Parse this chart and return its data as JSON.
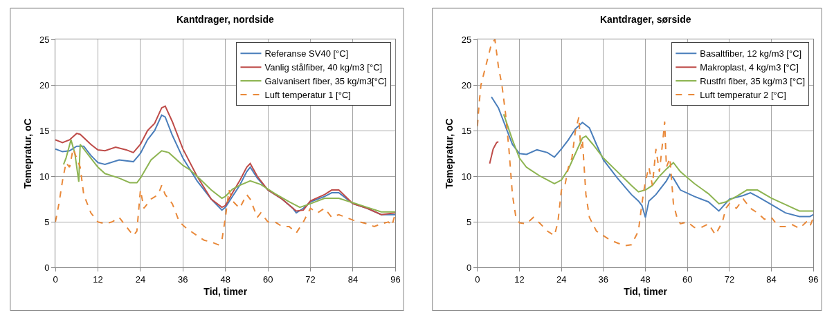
{
  "chart_data": [
    {
      "type": "line",
      "title": "Kantdrager, nordside",
      "xlabel": "Tid, timer",
      "ylabel": "Temepratur, oC",
      "xlim": [
        0,
        96
      ],
      "xticks": [
        0,
        12,
        24,
        36,
        48,
        60,
        72,
        84,
        96
      ],
      "ylim": [
        0,
        25
      ],
      "yticks": [
        0,
        5,
        10,
        15,
        20,
        25
      ],
      "grid": true,
      "legend": "top right",
      "marker": "none",
      "series": [
        {
          "name": "Referanse SV40 [°C]",
          "color": "#4a7ebb",
          "x": [
            0,
            2,
            4,
            6,
            8,
            10,
            12,
            14,
            18,
            22,
            24,
            26,
            28,
            30,
            31,
            33,
            36,
            40,
            44,
            47,
            48,
            50,
            52,
            54,
            55,
            57,
            60,
            64,
            67,
            68,
            70,
            72,
            76,
            78,
            80,
            84,
            88,
            92,
            96
          ],
          "values": [
            13,
            12.7,
            12.8,
            13.3,
            13.3,
            12.3,
            11.5,
            11.3,
            11.8,
            11.6,
            12.5,
            14,
            15,
            16.7,
            16.5,
            14.5,
            12,
            9.5,
            7.5,
            6.3,
            6.6,
            7.8,
            9,
            10.5,
            11,
            9.8,
            8.5,
            7.5,
            6.5,
            6,
            6.5,
            7.2,
            7.8,
            8.2,
            8.2,
            7,
            6.5,
            5.8,
            5.8
          ]
        },
        {
          "name": "Vanlig stålfiber, 40 kg/m3 [°C]",
          "color": "#be4b48",
          "x": [
            0,
            2,
            4,
            6,
            7,
            10,
            12,
            14,
            17,
            20,
            22,
            24,
            26,
            28,
            30,
            31,
            33,
            36,
            40,
            44,
            47,
            48,
            50,
            52,
            54,
            55,
            57,
            60,
            64,
            68,
            70,
            72,
            76,
            78,
            80,
            84,
            88,
            92,
            96
          ],
          "values": [
            14,
            13.7,
            14,
            14.7,
            14.6,
            13.5,
            12.9,
            12.8,
            13.2,
            12.9,
            12.6,
            13.5,
            15,
            15.8,
            17.5,
            17.7,
            16,
            13,
            10,
            7.5,
            6.6,
            6.8,
            8.2,
            9.5,
            11,
            11.4,
            10,
            8.5,
            7.5,
            6.2,
            6.3,
            7.3,
            8,
            8.5,
            8.5,
            7,
            6.5,
            5.8,
            6
          ]
        },
        {
          "name": "Galvanisert fiber, 35 kg/m3[°C]",
          "color": "#8db451",
          "x": [
            2.3,
            3,
            4.4,
            5.5,
            6.6,
            7,
            10,
            12,
            14,
            18,
            21,
            23,
            24,
            27,
            30,
            32,
            36,
            38,
            40,
            44,
            47,
            48,
            50,
            52,
            55,
            58,
            62,
            66,
            69,
            72,
            76,
            80,
            84,
            88,
            92,
            96
          ],
          "values": [
            11.3,
            12,
            14,
            12.5,
            9.4,
            13.5,
            12,
            11,
            10.3,
            9.8,
            9.3,
            9.3,
            9.8,
            11.8,
            12.8,
            12.6,
            11.2,
            10.7,
            10,
            8.5,
            7.6,
            7.8,
            8.6,
            9,
            9.5,
            9.1,
            8.1,
            7.2,
            6.6,
            7,
            7.6,
            7.6,
            7.1,
            6.6,
            6.1,
            6.1
          ]
        },
        {
          "name": "Luft temperatur 1 [°C]",
          "color": "#e9893a",
          "line_style": "dashed",
          "x": [
            0,
            1,
            2,
            3,
            4,
            5,
            6,
            7,
            8,
            10,
            12,
            14,
            16,
            18,
            20,
            22,
            23,
            24,
            25,
            27,
            29,
            30,
            31,
            33,
            35,
            37,
            40,
            42,
            44,
            46,
            47,
            48,
            49,
            50,
            52,
            54,
            55,
            57,
            58,
            60,
            62,
            64,
            66,
            68,
            70,
            72,
            74,
            76,
            78,
            80,
            82,
            84,
            86,
            88,
            90,
            92,
            94,
            95,
            96
          ],
          "values": [
            5,
            7,
            9.5,
            11.5,
            11,
            13,
            12,
            11,
            8,
            6,
            5,
            4.8,
            5,
            5.5,
            4.5,
            3.5,
            4,
            8.5,
            6.5,
            7.5,
            8,
            9,
            8,
            7,
            5,
            4.3,
            3.5,
            3,
            2.8,
            2.5,
            3,
            5.5,
            8.5,
            7.3,
            6.5,
            8,
            7.5,
            5.5,
            6,
            5,
            5,
            4.5,
            4.5,
            3.8,
            5,
            6.5,
            6,
            6.5,
            5.5,
            5.8,
            5.5,
            5.2,
            5,
            4.8,
            4.5,
            4.8,
            5,
            4.6,
            6
          ]
        }
      ]
    },
    {
      "type": "line",
      "title": "Kantdrager, sørside",
      "xlabel": "Tid, timer",
      "ylabel": "Temepratur, oC",
      "xlim": [
        0,
        96
      ],
      "xticks": [
        0,
        12,
        24,
        36,
        48,
        60,
        72,
        84,
        96
      ],
      "ylim": [
        0,
        25
      ],
      "yticks": [
        0,
        5,
        10,
        15,
        20,
        25
      ],
      "grid": true,
      "legend": "top right",
      "marker": "none",
      "series": [
        {
          "name": "Basaltfiber, 12 kg/m3 [°C]",
          "color": "#4a7ebb",
          "x": [
            4,
            6,
            8,
            10,
            12,
            14,
            17,
            20,
            22,
            24,
            26,
            28,
            30,
            32,
            34,
            36,
            40,
            44,
            46,
            47,
            48,
            49,
            51,
            54,
            55,
            56,
            58,
            62,
            66,
            69,
            72,
            76,
            78,
            80,
            84,
            88,
            92,
            95,
            96
          ],
          "values": [
            18.7,
            17.5,
            15.5,
            13.5,
            12.5,
            12.4,
            12.9,
            12.6,
            12.1,
            13,
            14,
            15.2,
            15.9,
            15.3,
            13.5,
            11.8,
            9.8,
            8,
            7.3,
            6.8,
            5.5,
            7.3,
            8,
            9.5,
            10.2,
            9.8,
            8.5,
            7.8,
            7.2,
            6.2,
            7.5,
            7.9,
            8.2,
            7.8,
            6.9,
            6,
            5.6,
            5.6,
            5.8
          ]
        },
        {
          "name": "Makroplast, 4 kg/m3 [°C]",
          "color": "#be4b48",
          "x": [
            3.5,
            4.5,
            5.5,
            6
          ],
          "values": [
            11.4,
            13,
            13.7,
            13.8
          ]
        },
        {
          "name": "Rustfri fiber, 35 kg/m3 [°C]",
          "color": "#8db451",
          "x": [
            7.5,
            10,
            12,
            14,
            18,
            22,
            24,
            26,
            28,
            30,
            31,
            33,
            36,
            40,
            44,
            46,
            48,
            50,
            52,
            54,
            56,
            58,
            62,
            66,
            69,
            71,
            74,
            77,
            80,
            84,
            88,
            92,
            96
          ],
          "values": [
            16.8,
            14,
            12,
            11,
            10,
            9.2,
            9.6,
            10.8,
            12.5,
            14.2,
            14.4,
            13.5,
            12,
            10.5,
            9,
            8.3,
            8.5,
            9,
            10,
            10.8,
            11.5,
            10.5,
            9.2,
            8.1,
            7,
            7.2,
            7.8,
            8.5,
            8.5,
            7.6,
            6.9,
            6.2,
            6.2
          ]
        },
        {
          "name": "Luft temperatur 2 [°C]",
          "color": "#e9893a",
          "line_style": "dashed",
          "x": [
            0,
            0.5,
            1,
            2,
            3,
            4,
            5,
            6,
            7,
            8,
            9,
            10,
            11,
            12,
            14,
            16,
            18,
            20,
            22,
            23,
            24,
            25,
            26,
            27,
            28,
            29,
            29.5,
            30,
            31,
            32,
            34,
            36,
            38,
            40,
            42,
            44,
            46,
            47,
            48,
            49,
            50,
            51,
            52,
            53,
            53.5,
            54,
            55,
            56,
            57,
            58,
            60,
            62,
            64,
            66,
            68,
            70,
            71,
            72,
            74,
            76,
            78,
            80,
            82,
            84,
            86,
            88,
            90,
            92,
            94,
            95,
            96
          ],
          "values": [
            15.5,
            18,
            20,
            21.5,
            23,
            24.5,
            25,
            22,
            20,
            17,
            13,
            8,
            5.5,
            4.9,
            4.8,
            5.5,
            4.8,
            4,
            3.5,
            5,
            8.5,
            9,
            11,
            12,
            15,
            16.5,
            13,
            14,
            8,
            5.5,
            4,
            3.5,
            3,
            2.7,
            2.4,
            2.5,
            4,
            7,
            9.5,
            11,
            9,
            13,
            10.5,
            14,
            16,
            11,
            12,
            7,
            5.5,
            4.8,
            5,
            4.4,
            4.4,
            4.8,
            3.6,
            5,
            6.5,
            7,
            6.5,
            7.5,
            6.5,
            6,
            5.3,
            5.5,
            4.5,
            4.5,
            4.7,
            4.3,
            5,
            4.5,
            5.5
          ]
        }
      ]
    }
  ]
}
